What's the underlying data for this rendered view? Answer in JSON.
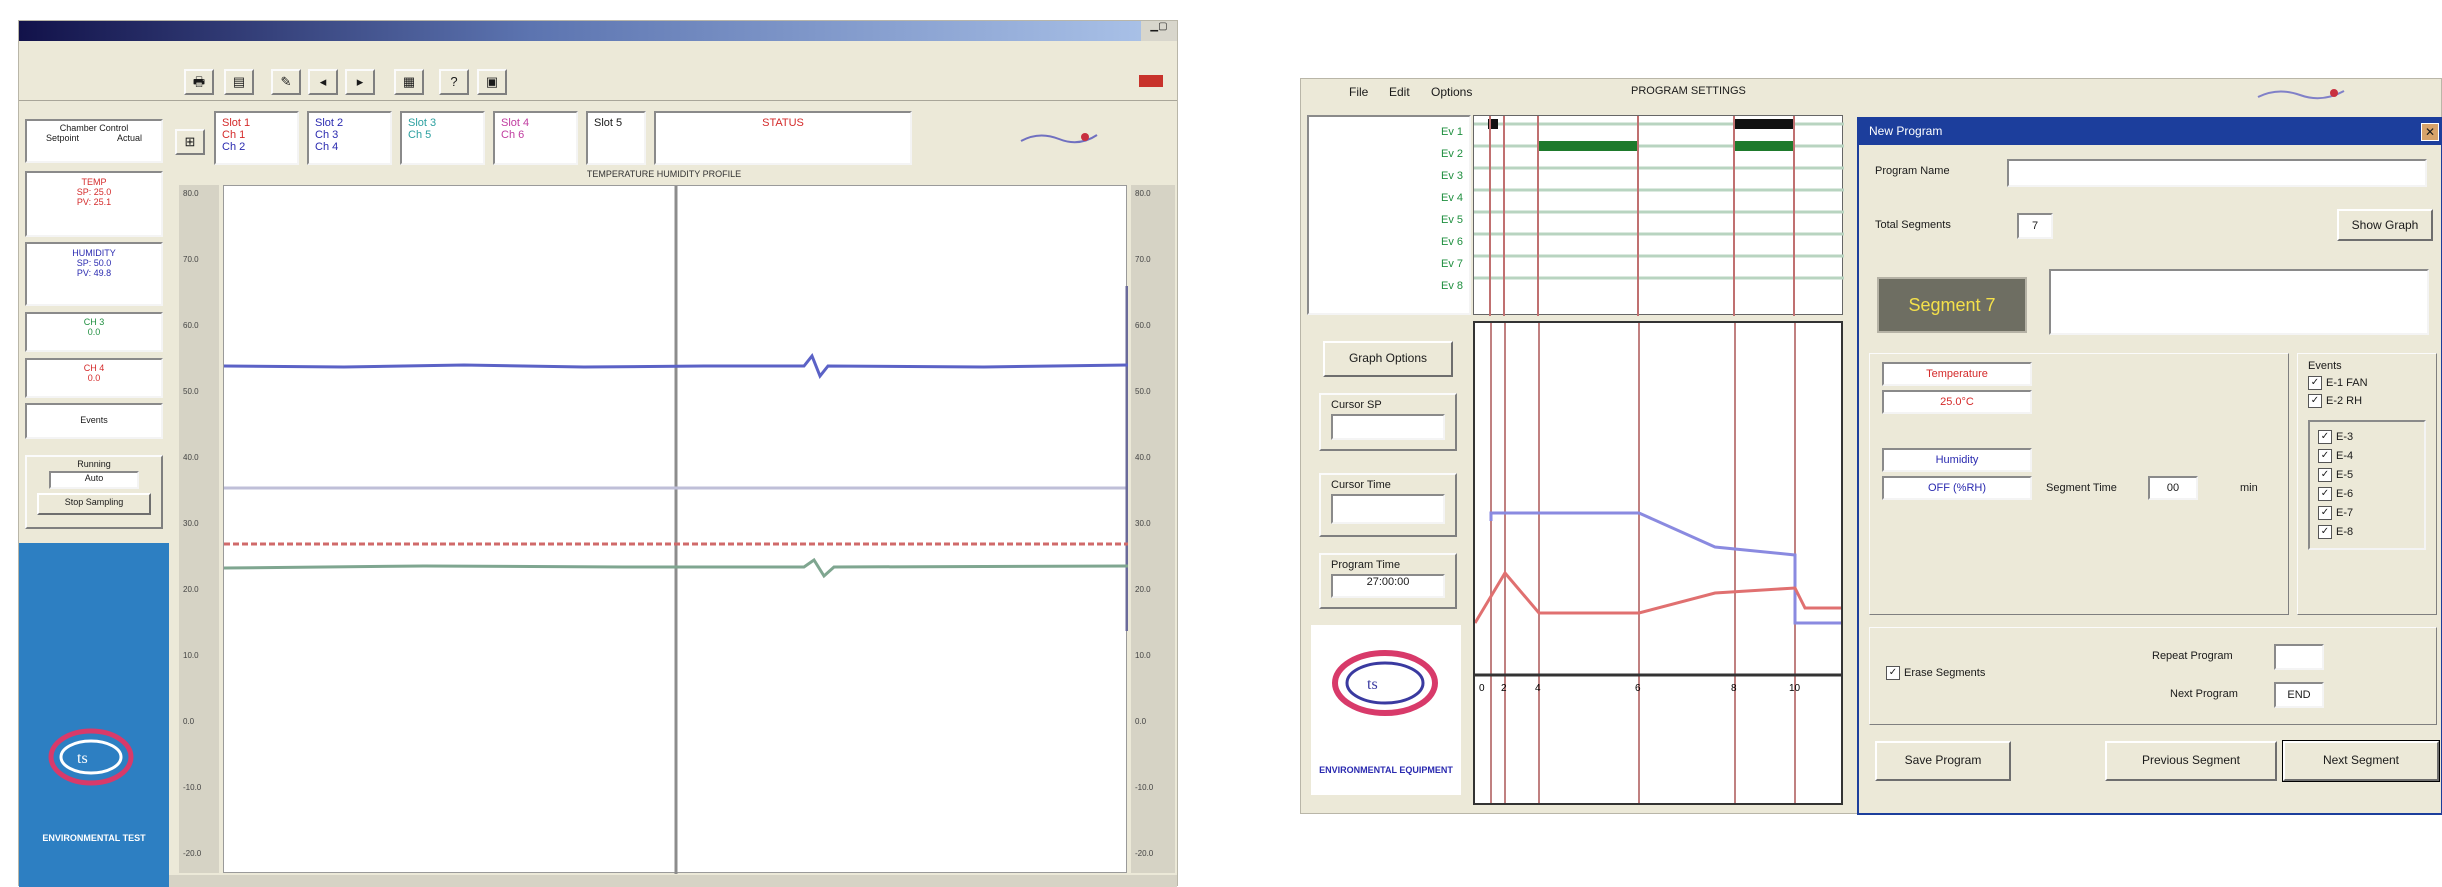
{
  "left_window": {
    "toolbar_buttons": [
      "print-icon",
      "chart-icon",
      "pen-icon",
      "back-icon",
      "forward-icon",
      "grid-icon",
      "help-icon",
      "save-icon"
    ],
    "readouts": [
      {
        "name": "Slot 1",
        "lines": [
          "Ch 1",
          "Ch 2"
        ]
      },
      {
        "name": "Slot 2",
        "lines": [
          "Ch 3",
          "Ch 4"
        ]
      },
      {
        "name": "Slot 3",
        "lines": [
          "Ch 5",
          ""
        ]
      },
      {
        "name": "Slot 4",
        "lines": [
          "Ch 6",
          ""
        ]
      },
      {
        "name": "Slot 5",
        "lines": [
          "",
          ""
        ]
      }
    ],
    "status_title": "STATUS",
    "graph_title": "TEMPERATURE HUMIDITY PROFILE",
    "sidebar": {
      "top_label": "Chamber Control",
      "top_sub": [
        "Setpoint",
        "Actual"
      ],
      "panel1": [
        "TEMP",
        "SP: 25.0",
        "PV: 25.1"
      ],
      "panel2": [
        "HUMIDITY",
        "SP: 50.0",
        "PV: 49.8"
      ],
      "panel3": [
        "CH 3",
        "0.0"
      ],
      "panel4": [
        "CH 4",
        "0.0"
      ],
      "panel5": "Events",
      "stop": {
        "title": "Running",
        "value": "Auto",
        "button": "Stop Sampling"
      }
    },
    "footer_brand": "ENVIRONMENTAL TEST"
  },
  "right_window": {
    "menu": [
      "File",
      "Edit",
      "Options"
    ],
    "header_title": "PROGRAM SETTINGS",
    "event_rows": [
      "Ev 1",
      "Ev 2",
      "Ev 3",
      "Ev 4",
      "Ev 5",
      "Ev 6",
      "Ev 7",
      "Ev 8"
    ],
    "left_buttons": {
      "graph_options": "Graph Options"
    },
    "fields": [
      {
        "label": "Cursor SP",
        "value": ""
      },
      {
        "label": "Cursor Time",
        "value": ""
      },
      {
        "label": "Program Time",
        "value": "27:00:00"
      }
    ],
    "footer_brand": "ENVIRONMENTAL EQUIPMENT",
    "x_ticks": [
      "0",
      "2",
      "4",
      "6",
      "8",
      "10"
    ],
    "dialog": {
      "title": "New Program",
      "program_name_label": "Program Name",
      "program_name_value": "",
      "total_segments_label": "Total Segments",
      "total_segments_value": "7",
      "show_graph_button": "Show Graph",
      "segment_label": "Segment",
      "segment_number": "7",
      "comment_value": "",
      "temperature_label": "Temperature",
      "temperature_value": "25.0°C",
      "humidity_label": "Humidity",
      "humidity_value": "OFF (%RH)",
      "segment_time_label": "Segment Time",
      "segment_time_value": "00",
      "segment_time_unit": "min",
      "events_label": "Events",
      "event_checks_top": [
        "E-1  FAN",
        "E-2  RH"
      ],
      "event_checks": [
        "E-3",
        "E-4",
        "E-5",
        "E-6",
        "E-7",
        "E-8"
      ],
      "erase_segments_label": "Erase Segments",
      "repeat_program_label": "Repeat Program",
      "repeat_program_value": "",
      "next_program_label": "Next Program",
      "next_program_value": "END",
      "save_program_button": "Save Program",
      "previous_segment_button": "Previous Segment",
      "next_segment_button": "Next Segment"
    }
  },
  "colors": {
    "title_bar_dark": "#12124a",
    "title_bar_light": "#aac2e8",
    "sidebar_blue": "#2d7fc2",
    "dialog_title": "#1c3e9c",
    "trace_blue": "#5b62c6",
    "trace_red": "#d06a6a",
    "trace_green": "#7fa690",
    "event_green": "#1e7a2c",
    "segment_button": "#6e6e62",
    "segment_text": "#f4e04a"
  }
}
